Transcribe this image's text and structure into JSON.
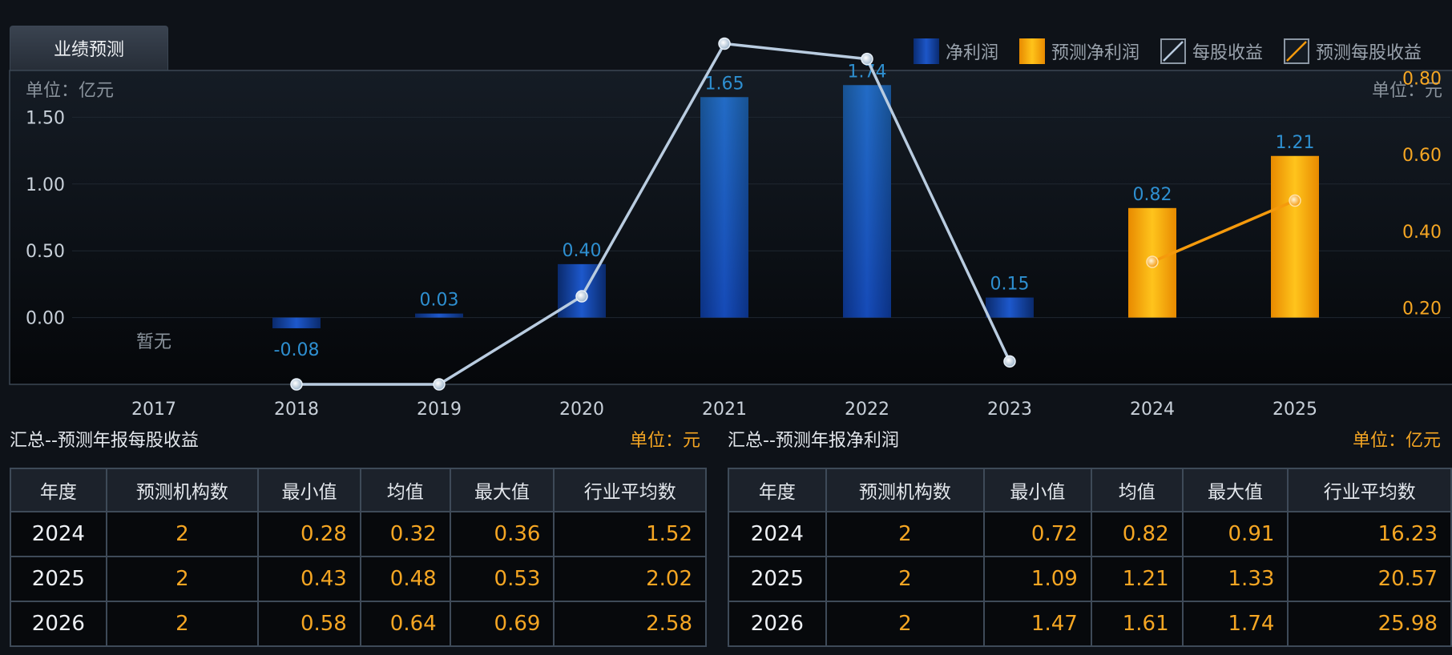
{
  "tab": {
    "label": "业绩预测"
  },
  "legend": [
    {
      "label": "净利润",
      "icon": "net-profit-swatch",
      "color": "#1d56c8"
    },
    {
      "label": "预测净利润",
      "icon": "forecast-net-profit-swatch",
      "color": "#ffc31a"
    },
    {
      "label": "每股收益",
      "icon": "eps-line-swatch",
      "color": "#b9cce0"
    },
    {
      "label": "预测每股收益",
      "icon": "forecast-eps-line-swatch",
      "color": "#f59a0c"
    }
  ],
  "chart_data": {
    "type": "bar",
    "left_unit": "单位：亿元",
    "right_unit": "单位：元",
    "categories": [
      "2017",
      "2018",
      "2019",
      "2020",
      "2021",
      "2022",
      "2023",
      "2024",
      "2025"
    ],
    "no_data_label": "暂无",
    "y_left": {
      "ticks": [
        "1.50",
        "1.00",
        "0.50",
        "0.00"
      ],
      "range": [
        -0.5,
        1.85
      ]
    },
    "y_right": {
      "ticks": [
        "0.80",
        "0.60",
        "0.40",
        "0.20"
      ],
      "range": [
        0.0,
        0.82
      ]
    },
    "series": [
      {
        "name": "净利润",
        "type": "bar",
        "axis": "left",
        "color": "#1d56c8",
        "values": [
          null,
          -0.08,
          0.03,
          0.4,
          1.65,
          1.74,
          0.15,
          null,
          null
        ],
        "labels": [
          "",
          "-0.08",
          "0.03",
          "0.40",
          "1.65",
          "1.74",
          "0.15",
          "",
          ""
        ]
      },
      {
        "name": "预测净利润",
        "type": "bar",
        "axis": "left",
        "color": "#ffc31a",
        "values": [
          null,
          null,
          null,
          null,
          null,
          null,
          null,
          0.82,
          1.21
        ],
        "labels": [
          "",
          "",
          "",
          "",
          "",
          "",
          "",
          "0.82",
          "1.21"
        ]
      },
      {
        "name": "每股收益",
        "type": "line",
        "axis": "right",
        "color": "#b9cce0",
        "values": [
          null,
          0.0,
          0.0,
          0.23,
          0.89,
          0.85,
          0.06,
          null,
          null
        ]
      },
      {
        "name": "预测每股收益",
        "type": "line",
        "axis": "right",
        "color": "#f59a0c",
        "values": [
          null,
          null,
          null,
          null,
          null,
          null,
          null,
          0.32,
          0.48
        ]
      }
    ]
  },
  "eps_table": {
    "title": "汇总--预测年报每股收益",
    "unit": "单位：元",
    "headers": [
      "年度",
      "预测机构数",
      "最小值",
      "均值",
      "最大值",
      "行业平均数"
    ],
    "rows": [
      [
        "2024",
        "2",
        "0.28",
        "0.32",
        "0.36",
        "1.52"
      ],
      [
        "2025",
        "2",
        "0.43",
        "0.48",
        "0.53",
        "2.02"
      ],
      [
        "2026",
        "2",
        "0.58",
        "0.64",
        "0.69",
        "2.58"
      ]
    ]
  },
  "profit_table": {
    "title": "汇总--预测年报净利润",
    "unit": "单位：亿元",
    "headers": [
      "年度",
      "预测机构数",
      "最小值",
      "均值",
      "最大值",
      "行业平均数"
    ],
    "rows": [
      [
        "2024",
        "2",
        "0.72",
        "0.82",
        "0.91",
        "16.23"
      ],
      [
        "2025",
        "2",
        "1.09",
        "1.21",
        "1.33",
        "20.57"
      ],
      [
        "2026",
        "2",
        "1.47",
        "1.61",
        "1.74",
        "25.98"
      ]
    ]
  }
}
